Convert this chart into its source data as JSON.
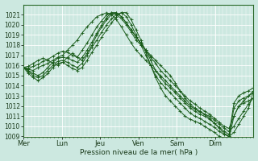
{
  "xlabel": "Pression niveau de la mer( hPa )",
  "background_color": "#cce8e0",
  "plot_bg_color": "#cce8e0",
  "grid_color": "#ffffff",
  "line_color": "#1a5c1a",
  "ylim": [
    1009,
    1022
  ],
  "yticks": [
    1009,
    1010,
    1011,
    1012,
    1013,
    1014,
    1015,
    1016,
    1017,
    1018,
    1019,
    1020,
    1021
  ],
  "xtick_labels": [
    "Mer",
    "Lun",
    "Jeu",
    "Ven",
    "Sam",
    "Dim"
  ],
  "xtick_positions": [
    0.0,
    0.833,
    1.667,
    2.5,
    3.333,
    4.167
  ],
  "xlim": [
    0,
    5.0
  ],
  "series": [
    [
      1015.8,
      1015.7,
      1015.9,
      1016.1,
      1016.4,
      1016.6,
      1016.9,
      1017.2,
      1017.4,
      1017.3,
      1017.0,
      1016.8,
      1017.5,
      1018.2,
      1019.0,
      1019.8,
      1020.4,
      1021.0,
      1021.2,
      1021.0,
      1020.6,
      1020.0,
      1019.3,
      1018.5,
      1018.0,
      1017.5,
      1017.0,
      1016.5,
      1016.0,
      1015.5,
      1015.0,
      1014.3,
      1013.5,
      1012.8,
      1012.2,
      1011.8,
      1011.5,
      1011.2,
      1010.8,
      1010.3,
      1009.8,
      1009.3,
      1009.0,
      1009.4,
      1010.2,
      1011.0,
      1011.8,
      1013.5
    ],
    [
      1015.8,
      1015.6,
      1015.5,
      1015.8,
      1016.0,
      1016.2,
      1016.5,
      1016.8,
      1017.0,
      1017.5,
      1018.0,
      1018.5,
      1019.2,
      1019.8,
      1020.3,
      1020.8,
      1021.0,
      1021.2,
      1021.0,
      1020.5,
      1019.8,
      1019.0,
      1018.2,
      1017.5,
      1017.0,
      1016.5,
      1016.0,
      1015.5,
      1015.0,
      1014.5,
      1014.0,
      1013.5,
      1013.0,
      1012.5,
      1012.0,
      1011.7,
      1011.4,
      1011.2,
      1011.0,
      1010.6,
      1010.2,
      1009.8,
      1009.5,
      1010.0,
      1010.8,
      1011.5,
      1012.2,
      1012.8
    ],
    [
      1015.8,
      1015.9,
      1016.2,
      1016.5,
      1016.7,
      1016.5,
      1016.2,
      1016.0,
      1016.3,
      1016.8,
      1017.2,
      1016.8,
      1016.5,
      1017.2,
      1018.0,
      1019.0,
      1019.8,
      1020.5,
      1021.0,
      1021.2,
      1020.8,
      1020.2,
      1019.5,
      1018.8,
      1018.2,
      1017.5,
      1016.8,
      1016.2,
      1015.5,
      1015.0,
      1014.5,
      1014.0,
      1013.5,
      1013.0,
      1012.5,
      1012.2,
      1011.8,
      1011.5,
      1011.2,
      1010.8,
      1010.4,
      1010.0,
      1009.8,
      1011.0,
      1012.0,
      1012.5,
      1013.0,
      1013.5
    ],
    [
      1015.8,
      1015.5,
      1015.2,
      1015.0,
      1015.3,
      1015.8,
      1016.3,
      1016.7,
      1016.8,
      1016.7,
      1016.5,
      1016.3,
      1016.8,
      1017.5,
      1018.3,
      1019.2,
      1020.0,
      1020.7,
      1021.2,
      1021.2,
      1020.8,
      1020.2,
      1019.5,
      1018.8,
      1018.2,
      1017.5,
      1016.5,
      1015.5,
      1014.8,
      1014.2,
      1013.8,
      1013.3,
      1012.8,
      1012.3,
      1011.8,
      1011.5,
      1011.2,
      1011.0,
      1010.7,
      1010.3,
      1009.9,
      1009.5,
      1009.2,
      1012.3,
      1013.0,
      1013.3,
      1013.5,
      1013.8
    ],
    [
      1015.8,
      1015.4,
      1015.0,
      1014.8,
      1015.0,
      1015.5,
      1016.0,
      1016.4,
      1016.5,
      1016.3,
      1016.0,
      1015.8,
      1016.2,
      1017.0,
      1017.8,
      1018.5,
      1019.3,
      1020.0,
      1020.6,
      1021.0,
      1021.2,
      1020.8,
      1020.0,
      1019.0,
      1018.0,
      1017.0,
      1016.0,
      1015.0,
      1014.3,
      1013.8,
      1013.3,
      1012.8,
      1012.3,
      1011.8,
      1011.3,
      1011.0,
      1010.8,
      1010.5,
      1010.2,
      1009.9,
      1009.5,
      1009.2,
      1009.0,
      1011.8,
      1012.5,
      1012.8,
      1013.0,
      1013.3
    ],
    [
      1015.8,
      1015.2,
      1014.8,
      1014.5,
      1014.8,
      1015.2,
      1015.8,
      1016.2,
      1016.3,
      1016.0,
      1015.7,
      1015.5,
      1015.8,
      1016.5,
      1017.3,
      1018.0,
      1018.8,
      1019.5,
      1020.2,
      1020.8,
      1021.2,
      1021.2,
      1020.5,
      1019.5,
      1018.5,
      1017.3,
      1016.0,
      1014.8,
      1013.8,
      1013.0,
      1012.5,
      1012.0,
      1011.5,
      1011.0,
      1010.7,
      1010.5,
      1010.3,
      1010.0,
      1009.7,
      1009.4,
      1009.0,
      1008.8,
      1008.8,
      1011.0,
      1012.0,
      1012.3,
      1012.5,
      1012.8
    ]
  ],
  "n_points": 48,
  "marker": "+",
  "marker_size": 2.5,
  "line_width": 0.7,
  "figsize": [
    3.2,
    2.0
  ],
  "dpi": 100
}
